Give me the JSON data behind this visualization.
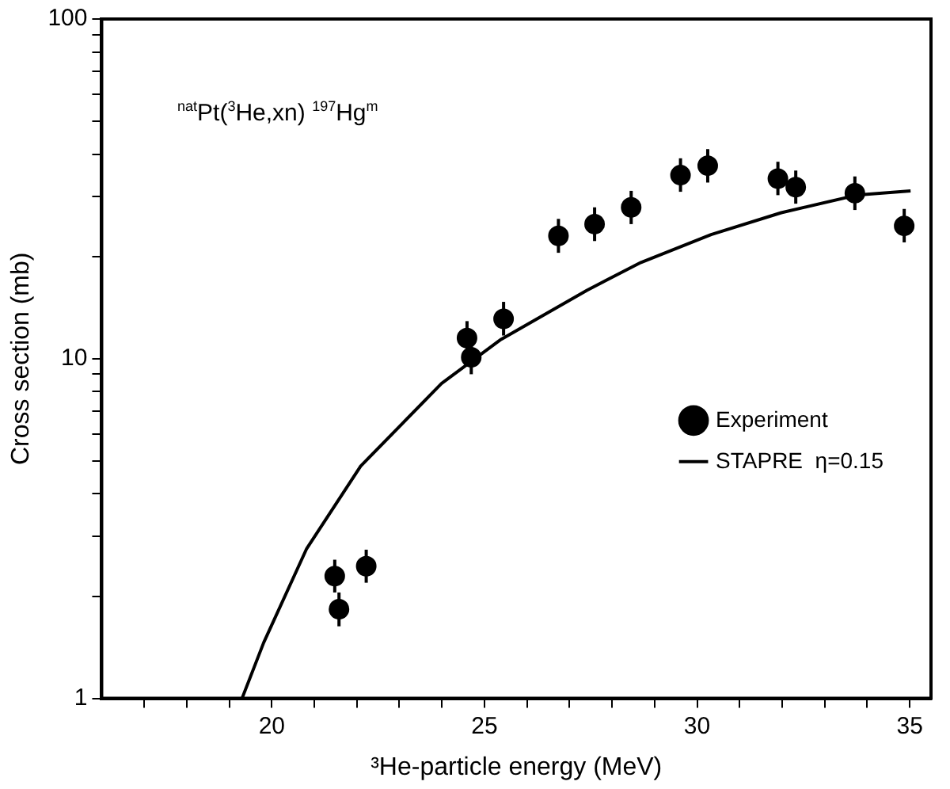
{
  "chart_data": {
    "type": "scatter",
    "xlabel": "³He-particle energy (MeV)",
    "ylabel": "Cross section (mb)",
    "annotations": [
      "$^{nat}$Pt($^{3}$He,xn) $^{197}$Hg$^{m}$"
    ],
    "log": "y",
    "grid": false,
    "legend": "right",
    "xlim": [
      16,
      35.5
    ],
    "ylim": [
      1,
      100
    ],
    "xticks": [
      {
        "value": 17,
        "label": null
      },
      {
        "value": 18,
        "label": null
      },
      {
        "value": 19,
        "label": null
      },
      20,
      {
        "value": 21,
        "label": null
      },
      {
        "value": 22,
        "label": null
      },
      {
        "value": 23,
        "label": null
      },
      {
        "value": 24,
        "label": null
      },
      25,
      {
        "value": 26,
        "label": null
      },
      {
        "value": 27,
        "label": null
      },
      {
        "value": 28,
        "label": null
      },
      {
        "value": 29,
        "label": null
      },
      30,
      {
        "value": 31,
        "label": null
      },
      {
        "value": 32,
        "label": null
      },
      {
        "value": 33,
        "label": null
      },
      {
        "value": 34,
        "label": null
      },
      35
    ],
    "yticks": [
      1,
      {
        "value": 2,
        "label": null
      },
      {
        "value": 3,
        "label": null
      },
      {
        "value": 4,
        "label": null
      },
      {
        "value": 5,
        "label": null
      },
      {
        "value": 6,
        "label": null
      },
      {
        "value": 7,
        "label": null
      },
      {
        "value": 8,
        "label": null
      },
      {
        "value": 9,
        "label": null
      },
      10,
      {
        "value": 20,
        "label": null
      },
      {
        "value": 30,
        "label": null
      },
      {
        "value": 40,
        "label": null
      },
      {
        "value": 50,
        "label": null
      },
      {
        "value": 60,
        "label": null
      },
      {
        "value": 70,
        "label": null
      },
      {
        "value": 80,
        "label": null
      },
      {
        "value": 90,
        "label": null
      },
      100
    ],
    "series": [
      {
        "name": "Experiment",
        "color": "#000000",
        "marker": "circle",
        "x": [
          21.48,
          21.58,
          22.22,
          24.59,
          24.69,
          25.45,
          26.74,
          27.59,
          28.45,
          29.61,
          30.25,
          31.9,
          32.32,
          33.71,
          34.87
        ],
        "values": [
          2.29,
          1.83,
          2.45,
          11.5,
          10.1,
          13.1,
          23.0,
          24.9,
          27.9,
          34.7,
          37.0,
          33.9,
          32.0,
          30.7,
          24.6
        ],
        "errors": [
          [
            2.05,
            2.56
          ],
          [
            1.63,
            2.05
          ],
          [
            2.19,
            2.74
          ],
          [
            10.3,
            12.9
          ],
          [
            9.0,
            11.3
          ],
          [
            11.7,
            14.7
          ],
          [
            20.5,
            25.8
          ],
          [
            22.2,
            27.9
          ],
          [
            24.9,
            31.2
          ],
          [
            31.0,
            38.9
          ],
          [
            33.0,
            41.4
          ],
          [
            30.3,
            38.0
          ],
          [
            28.6,
            35.8
          ],
          [
            27.4,
            34.4
          ],
          [
            22.0,
            27.6
          ]
        ]
      },
      {
        "name": "STAPRE  η=0.15",
        "type": "line",
        "color": "#000000",
        "marker": "none",
        "line_style": "solid",
        "x": [
          19.3,
          19.81,
          20.82,
          22.09,
          23.99,
          25.39,
          27.41,
          28.68,
          30.33,
          31.98,
          33.75,
          35.02
        ],
        "values": [
          1,
          1.46,
          2.76,
          4.83,
          8.45,
          11.4,
          15.9,
          19.2,
          23.2,
          26.9,
          30.3,
          31.2
        ]
      }
    ]
  }
}
